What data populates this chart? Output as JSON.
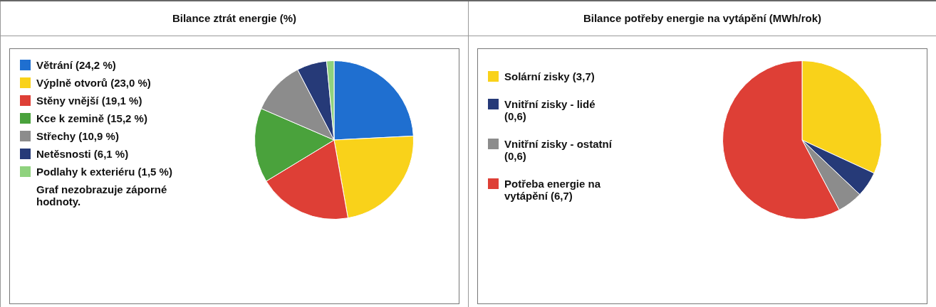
{
  "chart_data": [
    {
      "type": "pie",
      "title": "Bilance ztrát energie (%)",
      "categories": [
        "Větrání (24,2 %)",
        "Výplně otvorů (23,0 %)",
        "Stěny vnější (19,1 %)",
        "Kce k zemině (15,2 %)",
        "Střechy (10,9 %)",
        "Netěsnosti (6,1 %)",
        "Podlahy k exteriéru (1,5 %)"
      ],
      "values": [
        24.2,
        23.0,
        19.1,
        15.2,
        10.9,
        6.1,
        1.5
      ],
      "colors": [
        "#1f6fd0",
        "#f9d21a",
        "#de3f36",
        "#4aa23c",
        "#8c8c8c",
        "#263a78",
        "#8fd27e"
      ],
      "legend": "left",
      "annotations": [
        "Graf nezobrazuje záporné hodnoty."
      ]
    },
    {
      "type": "pie",
      "title": "Bilance potřeby energie na vytápění (MWh/rok)",
      "categories": [
        "Solární zisky (3,7)",
        "Vnitřní zisky - lidé (0,6)",
        "Vnitřní zisky - ostatní (0,6)",
        "Potřeba energie na vytápění (6,7)"
      ],
      "values": [
        3.7,
        0.6,
        0.6,
        6.7
      ],
      "colors": [
        "#f9d21a",
        "#263a78",
        "#8c8c8c",
        "#de3f36"
      ],
      "legend": "left"
    }
  ]
}
